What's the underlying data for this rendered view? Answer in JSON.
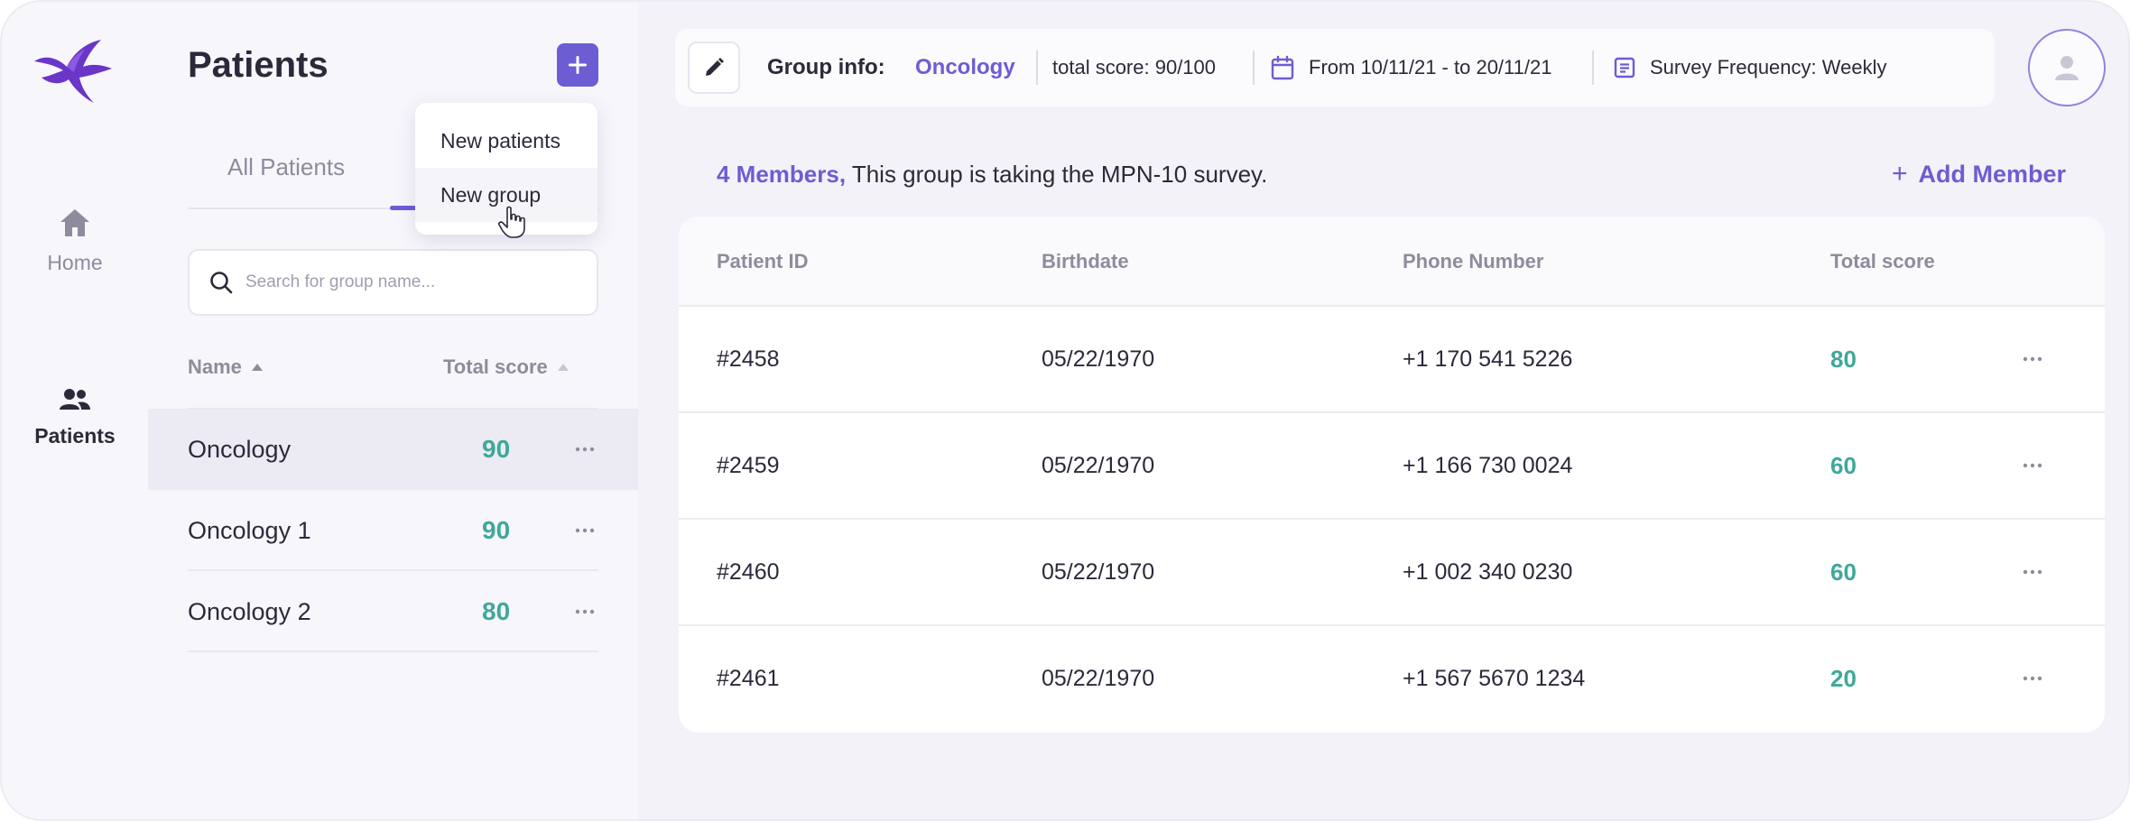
{
  "colors": {
    "accent": "#6c5dd3",
    "score_green": "#3fa89a",
    "text_dark": "#2b2a3a",
    "text_muted": "#8e8c9c"
  },
  "nav": {
    "logo_icon": "hummingbird-logo",
    "items": [
      {
        "label": "Home",
        "icon": "home-icon",
        "active": false
      },
      {
        "label": "Patients",
        "icon": "users-icon",
        "active": true
      }
    ]
  },
  "panel": {
    "title": "Patients",
    "add_icon": "plus-icon",
    "tabs": [
      {
        "label": "All Patients",
        "active": false
      }
    ],
    "search": {
      "placeholder": "Search for group name...",
      "value": ""
    },
    "columns": {
      "name": "Name",
      "score": "Total score"
    },
    "groups": [
      {
        "name": "Oncology",
        "score": "90",
        "selected": true
      },
      {
        "name": "Oncology 1",
        "score": "90",
        "selected": false
      },
      {
        "name": "Oncology 2",
        "score": "80",
        "selected": false
      }
    ],
    "dropdown": {
      "items": [
        "New patients",
        "New group"
      ],
      "hovered": "New group"
    }
  },
  "infobar": {
    "label": "Group info:",
    "group_name": "Oncology",
    "total_score": "total score: 90/100",
    "date_range": "From 10/11/21 - to 20/11/21",
    "frequency": "Survey Frequency: Weekly"
  },
  "members": {
    "count_text": "4 Members,",
    "description": " This group is taking the MPN-10 survey.",
    "add_label": "Add Member"
  },
  "table": {
    "headers": [
      "Patient ID",
      "Birthdate",
      "Phone Number",
      "Total score"
    ],
    "rows": [
      {
        "id": "#2458",
        "birthdate": "05/22/1970",
        "phone": "+1 170 541 5226",
        "score": "80"
      },
      {
        "id": "#2459",
        "birthdate": "05/22/1970",
        "phone": "+1 166 730 0024",
        "score": "60"
      },
      {
        "id": "#2460",
        "birthdate": "05/22/1970",
        "phone": "+1 002 340 0230",
        "score": "60"
      },
      {
        "id": "#2461",
        "birthdate": "05/22/1970",
        "phone": "+1 567 5670 1234",
        "score": "20"
      }
    ]
  }
}
